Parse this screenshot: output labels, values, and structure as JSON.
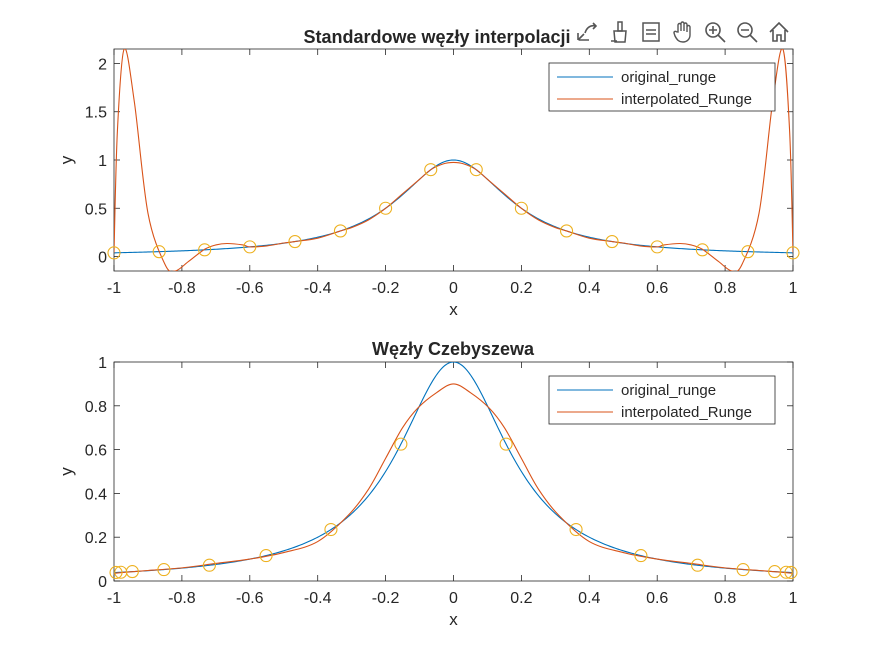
{
  "toolbar": {
    "icons": [
      "export-icon",
      "brush-icon",
      "datatip-icon",
      "pan-icon",
      "zoom-in-icon",
      "zoom-out-icon",
      "home-icon"
    ]
  },
  "colors": {
    "original": "#0072BD",
    "interpolated": "#D95319",
    "nodes": "#EDB120",
    "axis": "#262626",
    "background": "#ffffff"
  },
  "chart_data": [
    {
      "type": "line",
      "title": "Standardowe węzły interpolacji",
      "xlabel": "x",
      "ylabel": "y",
      "xlim": [
        -1,
        1
      ],
      "ylim": [
        -0.15,
        2.15
      ],
      "xticks": [
        -1,
        -0.8,
        -0.6,
        -0.4,
        -0.2,
        0,
        0.2,
        0.4,
        0.6,
        0.8,
        1
      ],
      "xtick_labels": [
        "-1",
        "-0.8",
        "-0.6",
        "-0.4",
        "-0.2",
        "0",
        "0.2",
        "0.4",
        "0.6",
        "0.8",
        "1"
      ],
      "yticks": [
        0,
        0.5,
        1,
        1.5,
        2
      ],
      "ytick_labels": [
        "0",
        "0.5",
        "1",
        "1.5",
        "2"
      ],
      "legend_position": "top-right",
      "series": [
        {
          "name": "original_runge",
          "function": "1/(1+25x^2)"
        },
        {
          "name": "interpolated_Runge",
          "x": [
            -1,
            -0.99,
            -0.97,
            -0.94,
            -0.9,
            -0.85,
            -0.82,
            -0.78,
            -0.733,
            -0.7,
            -0.667,
            -0.62,
            -0.6,
            -0.55,
            -0.5,
            -0.467,
            -0.4,
            -0.333,
            -0.3,
            -0.25,
            -0.2,
            -0.15,
            -0.1,
            -0.067,
            -0.03,
            0,
            0.03,
            0.067,
            0.1,
            0.15,
            0.2,
            0.25,
            0.3,
            0.333,
            0.4,
            0.467,
            0.5,
            0.55,
            0.6,
            0.62,
            0.667,
            0.7,
            0.733,
            0.78,
            0.82,
            0.85,
            0.9,
            0.94,
            0.97,
            0.99,
            1
          ],
          "y": [
            0.038,
            1.3,
            2.15,
            1.6,
            0.45,
            -0.08,
            -0.15,
            -0.05,
            0.075,
            0.12,
            0.135,
            0.12,
            0.1,
            0.11,
            0.14,
            0.155,
            0.19,
            0.265,
            0.3,
            0.38,
            0.5,
            0.65,
            0.8,
            0.9,
            0.96,
            0.975,
            0.96,
            0.9,
            0.8,
            0.65,
            0.5,
            0.38,
            0.3,
            0.265,
            0.19,
            0.155,
            0.14,
            0.11,
            0.1,
            0.12,
            0.135,
            0.12,
            0.075,
            -0.05,
            -0.15,
            -0.08,
            0.45,
            1.6,
            2.15,
            1.3,
            0.038
          ]
        },
        {
          "name": "",
          "marker": "circle",
          "x": [
            -1,
            -0.867,
            -0.733,
            -0.6,
            -0.467,
            -0.333,
            -0.2,
            -0.067,
            0.067,
            0.2,
            0.333,
            0.467,
            0.6,
            0.733,
            0.867,
            1
          ],
          "y": [
            0.038,
            0.05,
            0.069,
            0.1,
            0.155,
            0.265,
            0.5,
            0.9,
            0.9,
            0.5,
            0.265,
            0.155,
            0.1,
            0.069,
            0.05,
            0.038
          ]
        }
      ]
    },
    {
      "type": "line",
      "title": "Węzły Czebyszewa",
      "xlabel": "x",
      "ylabel": "y",
      "xlim": [
        -1,
        1
      ],
      "ylim": [
        0,
        1
      ],
      "xticks": [
        -1,
        -0.8,
        -0.6,
        -0.4,
        -0.2,
        0,
        0.2,
        0.4,
        0.6,
        0.8,
        1
      ],
      "xtick_labels": [
        "-1",
        "-0.8",
        "-0.6",
        "-0.4",
        "-0.2",
        "0",
        "0.2",
        "0.4",
        "0.6",
        "0.8",
        "1"
      ],
      "yticks": [
        0,
        0.2,
        0.4,
        0.6,
        0.8,
        1
      ],
      "ytick_labels": [
        "0",
        "0.2",
        "0.4",
        "0.6",
        "0.8",
        "1"
      ],
      "legend_position": "top-right",
      "series": [
        {
          "name": "original_runge",
          "function": "1/(1+25x^2)"
        },
        {
          "name": "interpolated_Runge",
          "x": [
            -1,
            -0.95,
            -0.9,
            -0.8,
            -0.7,
            -0.6,
            -0.5,
            -0.4,
            -0.31,
            -0.25,
            -0.2,
            -0.15,
            -0.105,
            -0.05,
            0,
            0.05,
            0.105,
            0.15,
            0.2,
            0.25,
            0.31,
            0.4,
            0.5,
            0.6,
            0.7,
            0.8,
            0.9,
            0.95,
            1
          ],
          "y": [
            0.035,
            0.042,
            0.048,
            0.06,
            0.08,
            0.1,
            0.13,
            0.18,
            0.3,
            0.42,
            0.56,
            0.7,
            0.79,
            0.86,
            0.9,
            0.86,
            0.79,
            0.7,
            0.56,
            0.42,
            0.3,
            0.18,
            0.13,
            0.1,
            0.08,
            0.06,
            0.048,
            0.042,
            0.035
          ]
        },
        {
          "name": "",
          "marker": "circle",
          "x": [
            -0.994,
            -0.946,
            -0.853,
            -0.719,
            -0.552,
            -0.361,
            -0.155,
            0.155,
            0.361,
            0.552,
            0.719,
            0.853,
            0.946,
            0.994,
            -0.98,
            0.98
          ],
          "y": [
            0.039,
            0.043,
            0.052,
            0.072,
            0.116,
            0.235,
            0.625,
            0.625,
            0.235,
            0.116,
            0.072,
            0.052,
            0.043,
            0.039,
            0.04,
            0.04
          ]
        }
      ]
    }
  ]
}
